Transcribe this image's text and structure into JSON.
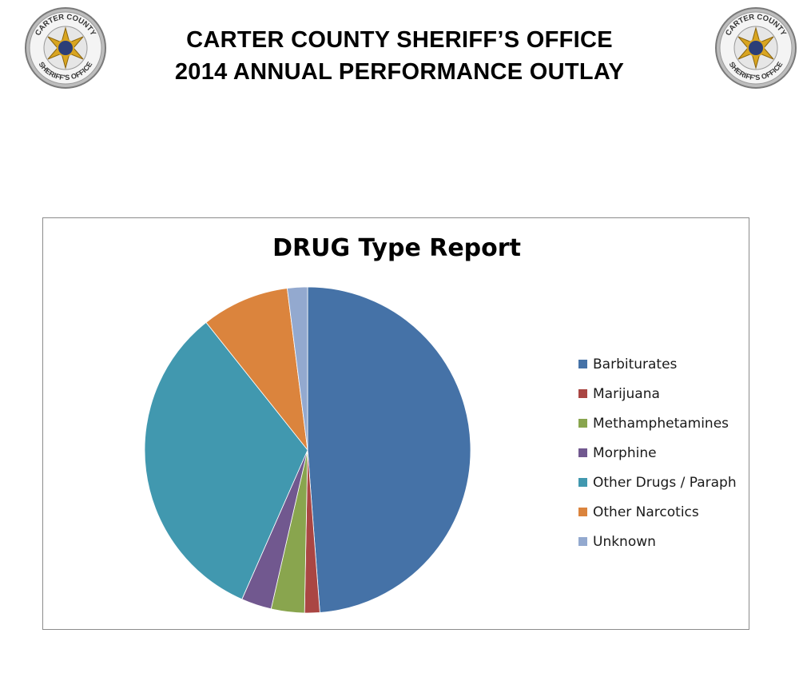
{
  "header": {
    "line1": "CARTER COUNTY SHERIFF’S OFFICE",
    "line2": "2014 ANNUAL PERFORMANCE OUTLAY"
  },
  "badge": {
    "top_text": "CARTER COUNTY",
    "bottom_text": "SHERIFF'S OFFICE"
  },
  "chart_data": {
    "type": "pie",
    "title": "DRUG Type Report",
    "legend_position": "right",
    "categories": [
      "Barbiturates",
      "Marijuana",
      "Methamphetamines",
      "Morphine",
      "Other Drugs / Paraph",
      "Other Narcotics",
      "Unknown"
    ],
    "values": [
      48.8,
      1.5,
      3.3,
      3.0,
      32.7,
      8.7,
      2.0
    ],
    "colors": [
      "#4572a7",
      "#aa4643",
      "#89a54e",
      "#71588f",
      "#4198af",
      "#db843d",
      "#93a9cf"
    ]
  }
}
